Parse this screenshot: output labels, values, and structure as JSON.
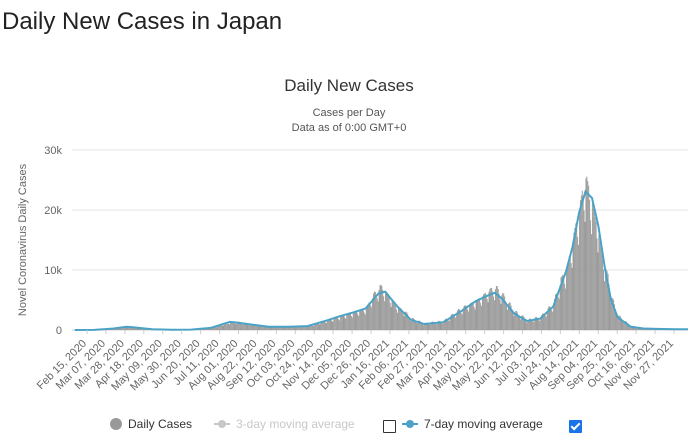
{
  "page": {
    "title": "Daily New Cases in Japan"
  },
  "chart_data": {
    "type": "bar",
    "title": "Daily New Cases",
    "subtitle": "Cases per Day",
    "subtitle2": "Data as of 0:00 GMT+0",
    "xlabel": "",
    "ylabel": "Novel Coronavirus Daily Cases",
    "ylim": [
      0,
      30000
    ],
    "yticks": [
      0,
      10000,
      20000,
      30000
    ],
    "ytick_labels": [
      "0",
      "10k",
      "20k",
      "30k"
    ],
    "x_tick_labels": [
      "Feb 15, 2020",
      "Mar 07, 2020",
      "Mar 28, 2020",
      "Apr 18, 2020",
      "May 09, 2020",
      "May 30, 2020",
      "Jun 20, 2020",
      "Jul 11, 2020",
      "Aug 01, 2020",
      "Aug 22, 2020",
      "Sep 12, 2020",
      "Oct 03, 2020",
      "Oct 24, 2020",
      "Nov 14, 2020",
      "Dec 05, 2020",
      "Dec 26, 2020",
      "Jan 16, 2021",
      "Feb 06, 2021",
      "Feb 27, 2021",
      "Mar 20, 2021",
      "Apr 10, 2021",
      "May 01, 2021",
      "May 22, 2021",
      "Jun 12, 2021",
      "Jul 03, 2021",
      "Jul 24, 2021",
      "Aug 14, 2021",
      "Sep 04, 2021",
      "Sep 25, 2021",
      "Oct 16, 2021",
      "Nov 06, 2021",
      "Nov 27, 2021"
    ],
    "grid": true,
    "legend_position": "bottom",
    "colors": {
      "bars": "#999999",
      "ma3": "#cccccc",
      "ma7": "#4aa3c7",
      "grid": "#e6e6e6"
    },
    "series": [
      {
        "name": "7-day moving average",
        "dates": [
          "2020-02-15",
          "2020-03-07",
          "2020-03-28",
          "2020-04-11",
          "2020-04-18",
          "2020-05-09",
          "2020-05-30",
          "2020-06-20",
          "2020-07-11",
          "2020-08-01",
          "2020-08-08",
          "2020-08-22",
          "2020-09-12",
          "2020-10-03",
          "2020-10-24",
          "2020-11-14",
          "2020-11-28",
          "2020-12-12",
          "2020-12-26",
          "2021-01-09",
          "2021-01-16",
          "2021-01-30",
          "2021-02-13",
          "2021-02-27",
          "2021-03-20",
          "2021-04-10",
          "2021-04-24",
          "2021-05-08",
          "2021-05-15",
          "2021-05-22",
          "2021-06-05",
          "2021-06-19",
          "2021-07-03",
          "2021-07-17",
          "2021-07-31",
          "2021-08-07",
          "2021-08-14",
          "2021-08-21",
          "2021-08-28",
          "2021-09-04",
          "2021-09-11",
          "2021-09-18",
          "2021-09-25",
          "2021-10-09",
          "2021-10-23",
          "2021-11-06",
          "2021-11-27",
          "2021-12-10"
        ],
        "values": [
          5,
          15,
          250,
          550,
          450,
          120,
          40,
          70,
          350,
          1350,
          1250,
          950,
          550,
          550,
          650,
          1600,
          2300,
          2900,
          3600,
          6100,
          6400,
          3800,
          1700,
          1000,
          1300,
          3300,
          4800,
          5800,
          6200,
          5300,
          2700,
          1500,
          1900,
          3900,
          9800,
          13900,
          19500,
          23100,
          22000,
          17300,
          10300,
          4800,
          2100,
          550,
          250,
          180,
          130,
          130
        ]
      },
      {
        "name": "3-day moving average",
        "dates": [],
        "values": []
      },
      {
        "name": "Daily Cases",
        "dates": [
          "2020-02-15",
          "2020-03-28",
          "2020-04-11",
          "2020-05-09",
          "2020-07-11",
          "2020-08-08",
          "2020-09-12",
          "2020-10-24",
          "2020-11-28",
          "2020-12-26",
          "2021-01-09",
          "2021-01-30",
          "2021-02-27",
          "2021-04-24",
          "2021-05-15",
          "2021-06-19",
          "2021-07-31",
          "2021-08-21",
          "2021-09-11",
          "2021-10-09",
          "2021-12-10"
        ],
        "values": [
          5,
          250,
          600,
          120,
          350,
          1400,
          550,
          650,
          2300,
          3600,
          7800,
          3800,
          1000,
          4800,
          7500,
          1500,
          9800,
          25800,
          10300,
          550,
          130
        ]
      }
    ],
    "legend": {
      "daily": "Daily Cases",
      "ma3": "3-day moving average",
      "ma7": "7-day moving average",
      "ma3_checked": false,
      "ma7_checked": true
    }
  }
}
